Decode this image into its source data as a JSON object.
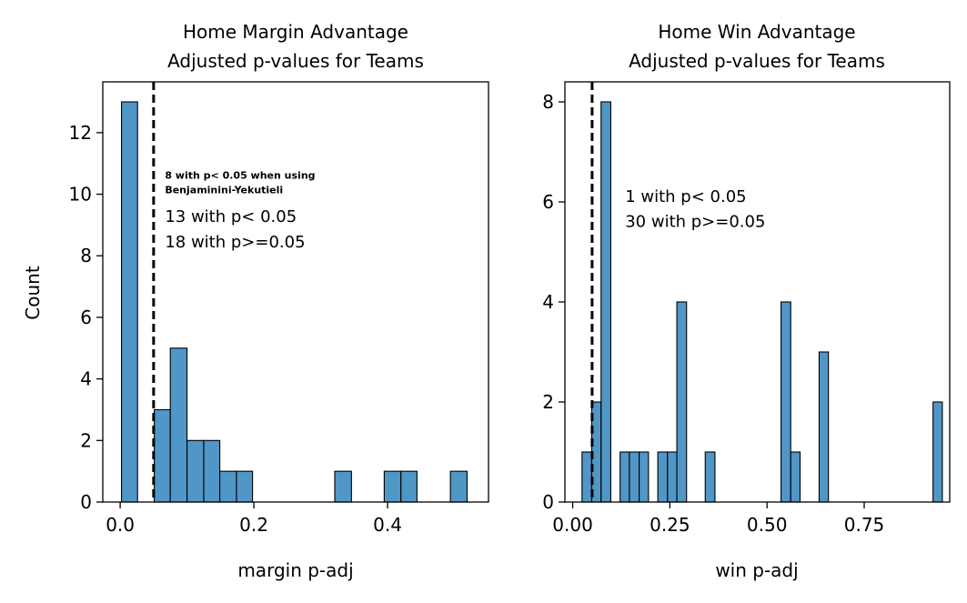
{
  "colors": {
    "bar_fill": "#5096c6",
    "bar_edge": "#000000",
    "threshold_line": "#000000",
    "axes": "#000000"
  },
  "chart_data": [
    {
      "type": "bar",
      "title": "Home Margin Advantage",
      "subtitle": "Adjusted p-values for Teams",
      "xlabel": "margin p-adj",
      "ylabel": "Count",
      "xlim": [
        -0.026,
        0.551
      ],
      "ylim": [
        0,
        13.65
      ],
      "x_ticks": [
        {
          "value": 0.0,
          "label": "0.0"
        },
        {
          "value": 0.2,
          "label": "0.2"
        },
        {
          "value": 0.4,
          "label": "0.4"
        }
      ],
      "y_ticks": [
        {
          "value": 0,
          "label": "0"
        },
        {
          "value": 2,
          "label": "2"
        },
        {
          "value": 4,
          "label": "4"
        },
        {
          "value": 6,
          "label": "6"
        },
        {
          "value": 8,
          "label": "8"
        },
        {
          "value": 10,
          "label": "10"
        },
        {
          "value": 12,
          "label": "12"
        }
      ],
      "bins": [
        {
          "start": 0.002,
          "end": 0.026,
          "count": 13
        },
        {
          "start": 0.051,
          "end": 0.075,
          "count": 3
        },
        {
          "start": 0.075,
          "end": 0.1,
          "count": 5
        },
        {
          "start": 0.1,
          "end": 0.125,
          "count": 2
        },
        {
          "start": 0.125,
          "end": 0.149,
          "count": 2
        },
        {
          "start": 0.149,
          "end": 0.174,
          "count": 1
        },
        {
          "start": 0.174,
          "end": 0.198,
          "count": 1
        },
        {
          "start": 0.321,
          "end": 0.346,
          "count": 1
        },
        {
          "start": 0.395,
          "end": 0.42,
          "count": 1
        },
        {
          "start": 0.42,
          "end": 0.444,
          "count": 1
        },
        {
          "start": 0.494,
          "end": 0.519,
          "count": 1
        }
      ],
      "threshold": 0.05,
      "annotations": [
        {
          "text": "8 with p< 0.05 when using",
          "x": 0.067,
          "y": 10.5,
          "size": "small-bold"
        },
        {
          "text": "Benjaminini-Yekutieli",
          "x": 0.067,
          "y": 10.03,
          "size": "small-bold"
        },
        {
          "text": "13 with p< 0.05",
          "x": 0.067,
          "y": 9.1,
          "size": "normal"
        },
        {
          "text": "18 with p>=0.05",
          "x": 0.067,
          "y": 8.28,
          "size": "normal"
        }
      ]
    },
    {
      "type": "bar",
      "title": "Home Win Advantage",
      "subtitle": "Adjusted p-values for Teams",
      "xlabel": "win p-adj",
      "ylabel": "",
      "xlim": [
        -0.02,
        0.97
      ],
      "ylim": [
        0,
        8.4
      ],
      "x_ticks": [
        {
          "value": 0.0,
          "label": "0.00"
        },
        {
          "value": 0.25,
          "label": "0.25"
        },
        {
          "value": 0.5,
          "label": "0.50"
        },
        {
          "value": 0.75,
          "label": "0.75"
        }
      ],
      "y_ticks": [
        {
          "value": 0,
          "label": "0"
        },
        {
          "value": 2,
          "label": "2"
        },
        {
          "value": 4,
          "label": "4"
        },
        {
          "value": 6,
          "label": "6"
        },
        {
          "value": 8,
          "label": "8"
        }
      ],
      "bins": [
        {
          "start": 0.024,
          "end": 0.049,
          "count": 1
        },
        {
          "start": 0.049,
          "end": 0.073,
          "count": 2
        },
        {
          "start": 0.073,
          "end": 0.098,
          "count": 8
        },
        {
          "start": 0.122,
          "end": 0.146,
          "count": 1
        },
        {
          "start": 0.146,
          "end": 0.171,
          "count": 1
        },
        {
          "start": 0.171,
          "end": 0.195,
          "count": 1
        },
        {
          "start": 0.219,
          "end": 0.244,
          "count": 1
        },
        {
          "start": 0.244,
          "end": 0.268,
          "count": 1
        },
        {
          "start": 0.268,
          "end": 0.293,
          "count": 4
        },
        {
          "start": 0.341,
          "end": 0.366,
          "count": 1
        },
        {
          "start": 0.536,
          "end": 0.561,
          "count": 4
        },
        {
          "start": 0.561,
          "end": 0.585,
          "count": 1
        },
        {
          "start": 0.634,
          "end": 0.658,
          "count": 3
        },
        {
          "start": 0.927,
          "end": 0.951,
          "count": 2
        }
      ],
      "threshold": 0.05,
      "annotations": [
        {
          "text": "1 with p< 0.05",
          "x": 0.135,
          "y": 6.0,
          "size": "normal"
        },
        {
          "text": "30 with p>=0.05",
          "x": 0.135,
          "y": 5.5,
          "size": "normal"
        }
      ]
    }
  ]
}
